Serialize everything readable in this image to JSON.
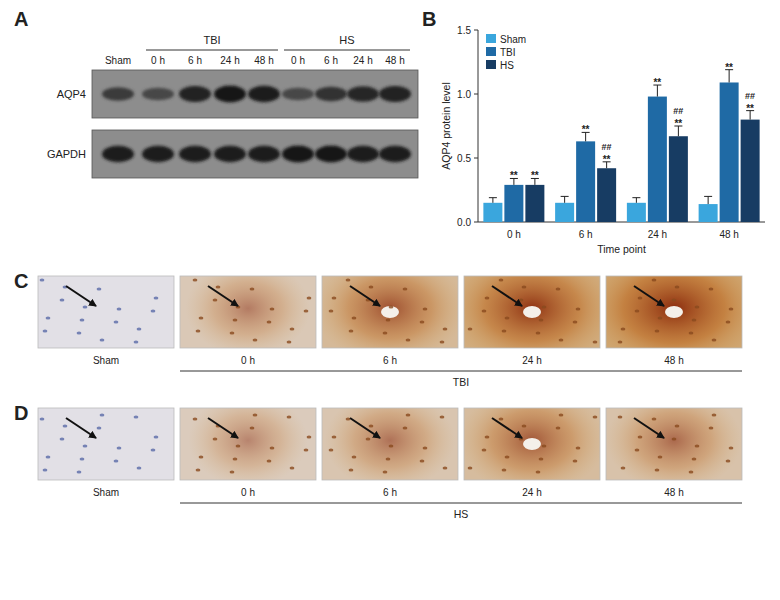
{
  "panel_labels": [
    "A",
    "B",
    "C",
    "D"
  ],
  "blot": {
    "lanes": [
      "Sham",
      "0 h",
      "6 h",
      "24 h",
      "48 h",
      "0 h",
      "6 h",
      "24 h",
      "48 h"
    ],
    "groups": [
      "TBI",
      "HS"
    ],
    "rows": [
      "AQP4",
      "GAPDH"
    ]
  },
  "chart_data": {
    "type": "bar",
    "x_label": "Time point",
    "y_label": "AQP4 protein level",
    "categories": [
      "0 h",
      "6 h",
      "24 h",
      "48 h"
    ],
    "series": [
      {
        "name": "Sham",
        "color": "#3aa6dd",
        "values": [
          0.15,
          0.15,
          0.15,
          0.14
        ],
        "errors": [
          0.04,
          0.05,
          0.04,
          0.06
        ]
      },
      {
        "name": "TBI",
        "color": "#1f6aa5",
        "values": [
          0.29,
          0.63,
          0.98,
          1.09
        ],
        "errors": [
          0.05,
          0.07,
          0.09,
          0.1
        ],
        "significance": [
          "**",
          "**",
          "**",
          "**"
        ]
      },
      {
        "name": "HS",
        "color": "#173c63",
        "values": [
          0.29,
          0.42,
          0.67,
          0.8
        ],
        "errors": [
          0.05,
          0.05,
          0.08,
          0.07
        ],
        "significance": [
          "**",
          "**",
          "**",
          "**"
        ],
        "significance_vs_tbi": [
          null,
          "##",
          "##",
          "##"
        ]
      }
    ],
    "ylim": [
      0,
      1.5
    ],
    "yticks": [
      {
        "value": 0,
        "label": "0.0"
      },
      0.5,
      {
        "value": 1,
        "label": "1.0"
      },
      1.5
    ],
    "legend": "upper left"
  },
  "histology": [
    {
      "group": "TBI",
      "images": [
        "Sham",
        "0 h",
        "6 h",
        "24 h",
        "48 h"
      ]
    },
    {
      "group": "HS",
      "images": [
        "Sham",
        "0 h",
        "6 h",
        "24 h",
        "48 h"
      ]
    }
  ]
}
